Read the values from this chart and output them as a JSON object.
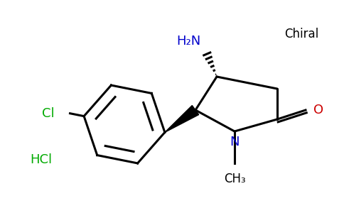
{
  "background_color": "#ffffff",
  "chiral_label": "Chiral",
  "chiral_color": "#000000",
  "chiral_fontsize": 12,
  "hcl_label": "HCl",
  "hcl_color": "#00aa00",
  "hcl_fontsize": 13,
  "nh2_label": "H₂N",
  "nh2_color": "#0000cc",
  "nh2_fontsize": 13,
  "n_label": "N",
  "n_color": "#0000cc",
  "n_fontsize": 13,
  "o_label": "O",
  "o_color": "#cc0000",
  "o_fontsize": 13,
  "cl_label": "Cl",
  "cl_color": "#00aa00",
  "cl_fontsize": 13,
  "me_label": "CH₃",
  "me_color": "#000000",
  "me_fontsize": 12
}
